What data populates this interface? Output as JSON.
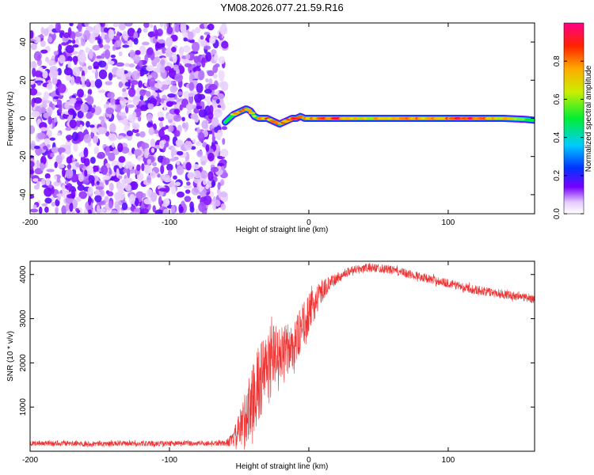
{
  "figure": {
    "title": "YM08.2026.077.21.59.R16"
  },
  "chart_data": [
    {
      "type": "heatmap",
      "xlabel": "Height of straight line (km)",
      "ylabel": "Frequency (Hz)",
      "xlim": [
        -200,
        162
      ],
      "ylim": [
        -50,
        50
      ],
      "x_ticks": [
        -200,
        -100,
        0,
        100
      ],
      "y_ticks": [
        -40,
        -20,
        0,
        20,
        40
      ],
      "noise_region_x": [
        -200,
        -60
      ],
      "ridge": {
        "x": [
          -60,
          -57,
          -54,
          -51,
          -48,
          -45,
          -42,
          -39,
          -36,
          -33,
          -30,
          -27,
          -24,
          -21,
          -18,
          -15,
          -12,
          -9,
          -6,
          -3,
          0,
          10,
          20,
          40,
          60,
          80,
          100,
          120,
          140,
          155,
          162
        ],
        "y": [
          -2,
          0,
          2,
          3,
          4,
          5,
          4,
          1,
          0,
          0,
          0,
          -1,
          -2,
          -3,
          -2,
          -1,
          0,
          0,
          1,
          0,
          0,
          0,
          0,
          0,
          0,
          0,
          0,
          0,
          0,
          -0.5,
          -1
        ],
        "amplitude": [
          0.35,
          0.5,
          0.65,
          0.7,
          0.8,
          0.85,
          0.7,
          0.6,
          0.65,
          0.75,
          0.8,
          0.7,
          0.75,
          0.85,
          0.8,
          0.8,
          0.85,
          0.9,
          0.75,
          0.7,
          0.75,
          0.8,
          0.85,
          0.7,
          0.72,
          0.75,
          0.8,
          0.85,
          0.7,
          0.55,
          0.4
        ]
      },
      "colorbar": {
        "label": "Normalized spectral amplitude",
        "range": [
          0,
          1
        ],
        "ticks": [
          0.0,
          0.2,
          0.4,
          0.6,
          0.8
        ],
        "tick_labels": [
          "0.0",
          "0.2",
          "0.4",
          "0.6",
          "0.8"
        ]
      }
    },
    {
      "type": "line",
      "xlabel": "Height of straight line (km)",
      "ylabel": "SNR (10 * v/v)",
      "xlim": [
        -200,
        162
      ],
      "ylim": [
        0,
        4300
      ],
      "x_ticks": [
        -200,
        -100,
        0,
        100
      ],
      "y_ticks": [
        1000,
        2000,
        3000,
        4000
      ],
      "color": "#ee3333",
      "series": [
        {
          "x": [
            -200,
            -150,
            -100,
            -60,
            -55,
            -50,
            -45,
            -40,
            -35,
            -30,
            -25,
            -20,
            -15,
            -10,
            -5,
            0,
            5,
            10,
            15,
            20,
            25,
            30,
            40,
            50,
            60,
            80,
            100,
            120,
            140,
            162
          ],
          "values": [
            180,
            170,
            175,
            180,
            250,
            450,
            800,
            1200,
            1600,
            1900,
            2200,
            2200,
            2300,
            2450,
            2800,
            3100,
            3400,
            3650,
            3800,
            3900,
            4000,
            4100,
            4150,
            4150,
            4100,
            3950,
            3800,
            3650,
            3550,
            3450
          ],
          "noise_amplitude": [
            60,
            60,
            60,
            60,
            150,
            400,
            700,
            800,
            900,
            800,
            700,
            600,
            600,
            550,
            500,
            450,
            350,
            250,
            150,
            120,
            100,
            100,
            100,
            100,
            100,
            100,
            100,
            100,
            100,
            100
          ]
        }
      ]
    }
  ]
}
